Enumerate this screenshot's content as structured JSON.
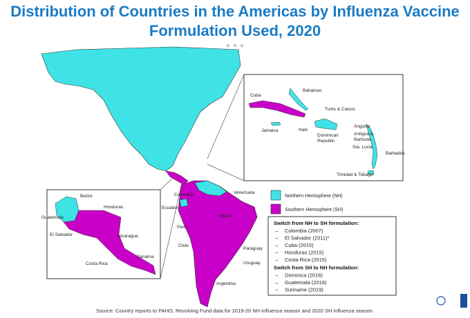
{
  "title": "Distribution of Countries in the Americas by Influenza Vaccine Formulation Used, 2020",
  "legend": [
    {
      "label": "Northern Hemisphere (NH)",
      "color": "#3fe3e6"
    },
    {
      "label": "Southern Hemisphere (SH)",
      "color": "#c800c8"
    }
  ],
  "map_labels": [
    "Cuba",
    "Bahamas",
    "Turks & Caicos",
    "Jamaica",
    "Haiti",
    "Dominican Republic",
    "Anguilla",
    "Antigua & Barbuda",
    "Sta. Lucia",
    "Barbados",
    "Trinidad & Tobago",
    "Belize",
    "Honduras",
    "Guatemala",
    "El Salvador",
    "Nicaragua",
    "Panama",
    "Costa Rica",
    "Colombia",
    "Venezuela",
    "Ecuador",
    "Peru",
    "Brazil",
    "Chile",
    "Paraguay",
    "Uruguay",
    "Argentina"
  ],
  "switches": [
    {
      "heading": "Switch from NH to SH formulation:",
      "items": [
        "Colombia (2007)",
        "El Salvador (2011)*",
        "Cuba (2015)",
        "Honduras (2015)",
        "Costa Rica (2015)"
      ]
    },
    {
      "heading": "Switch from SH to NH formulation:",
      "items": [
        "Dominica (2016)",
        "Guatemala (2018)",
        "Suriname (2019)"
      ]
    }
  ],
  "source": "Source: Country reports to PAHO, Revolving Fund data for 2019-20 NH influenza season and 2020 SH influenza season."
}
